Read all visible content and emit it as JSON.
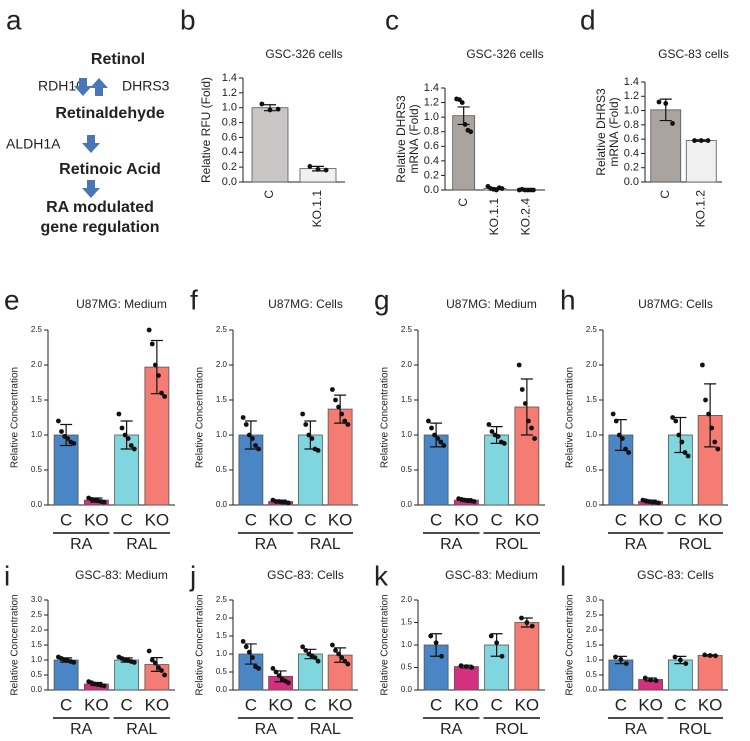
{
  "panel_a": {
    "letter": "a",
    "top": "Retinol",
    "left_enzyme": "RDH10",
    "right_enzyme": "DHRS3",
    "middle": "Retinaldehyde",
    "enzyme": "ALDH1A",
    "product": "Retinoic Acid",
    "outcome": [
      "RA modulated",
      "gene regulation"
    ]
  },
  "chart_data": [
    {
      "type": "bar",
      "panel": "b",
      "title": "GSC-326 cells",
      "ylabel": [
        "Relative RFU (Fold)"
      ],
      "categories": [
        "C",
        "KO.1.1"
      ],
      "values": [
        1.0,
        0.18
      ],
      "errors": [
        0.04,
        0.03
      ],
      "points": [
        [
          1.05,
          0.97,
          0.98
        ],
        [
          0.21,
          0.17,
          0.16
        ]
      ],
      "colors": [
        "#c9c5c5",
        "#f0f0f0"
      ],
      "ylim": [
        0,
        1.4
      ],
      "yticks": [
        {
          "value": 0,
          "label": "0.0"
        },
        0.2,
        0.4,
        0.6,
        0.8,
        {
          "value": 1,
          "label": "1.0"
        },
        1.2,
        1.4
      ]
    },
    {
      "type": "bar",
      "panel": "c",
      "title": "GSC-326 cells",
      "ylabel": [
        "Relative DHRS3",
        "mRNA (Fold)"
      ],
      "categories": [
        "C",
        "KO.1.1",
        "KO.2.4"
      ],
      "values": [
        1.02,
        0.02,
        0.0
      ],
      "errors": [
        0.12,
        0.01,
        0.0
      ],
      "points": [
        [
          1.25,
          1.24,
          1.2,
          0.9,
          0.82,
          0.8
        ],
        [
          0.05,
          0.02,
          0.01,
          0.0,
          0.03,
          0.02
        ],
        [
          0.0,
          0.01,
          0.0,
          0.0,
          0.0,
          0.0
        ]
      ],
      "colors": [
        "#aaa4a0",
        "#ffffff",
        "#ffffff"
      ],
      "ylim": [
        0,
        1.4
      ],
      "yticks": [
        {
          "value": 0,
          "label": "0.0"
        },
        0.2,
        0.4,
        0.6,
        0.8,
        {
          "value": 1,
          "label": "1.0"
        },
        1.2,
        1.4
      ]
    },
    {
      "type": "bar",
      "panel": "d",
      "title": "GSC-83 cells",
      "ylabel": [
        "Relative DHRS3",
        "mRNA (Fold)"
      ],
      "categories": [
        "C",
        "KO.1.2"
      ],
      "values": [
        1.01,
        0.58
      ],
      "errors": [
        0.15,
        0.01
      ],
      "points": [
        [
          1.12,
          1.1,
          0.82
        ],
        [
          0.58,
          0.58,
          0.58
        ]
      ],
      "colors": [
        "#aaa4a0",
        "#f0f0f0"
      ],
      "ylim": [
        0,
        1.4
      ],
      "yticks": [
        {
          "value": 0,
          "label": "0.0"
        },
        0.2,
        0.4,
        0.6,
        0.8,
        {
          "value": 1,
          "label": "1.0"
        },
        1.2,
        1.4
      ]
    },
    {
      "type": "bar",
      "panel": "e",
      "title": "U87MG: Medium",
      "ylabel": [
        "Relative Concentration"
      ],
      "categories": [
        "C",
        "KO",
        "C",
        "KO"
      ],
      "groups": [
        "RA",
        "RAL"
      ],
      "values": [
        1.0,
        0.07,
        1.0,
        1.97
      ],
      "errors": [
        0.15,
        0.03,
        0.2,
        0.38
      ],
      "points": [
        [
          1.2,
          1.05,
          0.98,
          0.95,
          0.9,
          0.88
        ],
        [
          0.1,
          0.08,
          0.07,
          0.06,
          0.05,
          0.04
        ],
        [
          1.3,
          1.1,
          1.0,
          0.95,
          0.85,
          0.8
        ],
        [
          2.5,
          2.3,
          2.0,
          1.85,
          1.6,
          1.55
        ]
      ],
      "colors": [
        "#4a86c6",
        "#d42f80",
        "#80d6df",
        "#f47c73"
      ],
      "ylim": [
        0,
        2.5
      ],
      "yticks": [
        {
          "value": 0,
          "label": "0.0"
        },
        0.5,
        {
          "value": 1,
          "label": "1.0"
        },
        1.5,
        {
          "value": 2,
          "label": "2.0"
        },
        2.5
      ]
    },
    {
      "type": "bar",
      "panel": "f",
      "title": "U87MG: Cells",
      "ylabel": [
        "Relative Concentration"
      ],
      "categories": [
        "C",
        "KO",
        "C",
        "KO"
      ],
      "groups": [
        "RA",
        "RAL"
      ],
      "values": [
        1.0,
        0.05,
        1.0,
        1.37
      ],
      "errors": [
        0.2,
        0.02,
        0.2,
        0.2
      ],
      "points": [
        [
          1.25,
          1.15,
          1.0,
          0.95,
          0.85,
          0.8
        ],
        [
          0.07,
          0.05,
          0.05,
          0.04,
          0.04,
          0.03
        ],
        [
          1.3,
          1.15,
          1.0,
          0.95,
          0.8,
          0.78
        ],
        [
          1.65,
          1.5,
          1.4,
          1.3,
          1.2,
          1.15
        ]
      ],
      "colors": [
        "#4a86c6",
        "#d42f80",
        "#80d6df",
        "#f47c73"
      ],
      "ylim": [
        0,
        2.5
      ],
      "yticks": [
        {
          "value": 0,
          "label": "0.0"
        },
        0.5,
        {
          "value": 1,
          "label": "1.0"
        },
        1.5,
        {
          "value": 2,
          "label": "2.0"
        },
        2.5
      ]
    },
    {
      "type": "bar",
      "panel": "g",
      "title": "U87MG: Medium",
      "ylabel": [
        "Relative Concentration"
      ],
      "categories": [
        "C",
        "KO",
        "C",
        "KO"
      ],
      "groups": [
        "RA",
        "ROL"
      ],
      "values": [
        1.0,
        0.07,
        1.0,
        1.4
      ],
      "errors": [
        0.17,
        0.02,
        0.12,
        0.4
      ],
      "points": [
        [
          1.2,
          1.1,
          1.0,
          0.95,
          0.9,
          0.85
        ],
        [
          0.09,
          0.08,
          0.07,
          0.06,
          0.06,
          0.05
        ],
        [
          1.15,
          1.05,
          1.0,
          0.98,
          0.9,
          0.88
        ],
        [
          2.0,
          1.65,
          1.45,
          1.2,
          1.1,
          0.95
        ]
      ],
      "colors": [
        "#4a86c6",
        "#d42f80",
        "#80d6df",
        "#f47c73"
      ],
      "ylim": [
        0,
        2.5
      ],
      "yticks": [
        {
          "value": 0,
          "label": "0.0"
        },
        0.5,
        {
          "value": 1,
          "label": "1.0"
        },
        1.5,
        {
          "value": 2,
          "label": "2.0"
        },
        2.5
      ]
    },
    {
      "type": "bar",
      "panel": "h",
      "title": "U87MG: Cells",
      "ylabel": [
        "Relative Concentration"
      ],
      "categories": [
        "C",
        "KO",
        "C",
        "KO"
      ],
      "groups": [
        "RA",
        "ROL"
      ],
      "values": [
        1.0,
        0.05,
        1.0,
        1.28
      ],
      "errors": [
        0.22,
        0.02,
        0.25,
        0.45
      ],
      "points": [
        [
          1.3,
          1.2,
          1.0,
          0.95,
          0.8,
          0.75
        ],
        [
          0.07,
          0.06,
          0.05,
          0.04,
          0.04,
          0.03
        ],
        [
          1.25,
          1.2,
          1.0,
          0.9,
          0.75,
          0.7
        ],
        [
          2.0,
          1.5,
          1.3,
          1.1,
          0.9,
          0.8
        ]
      ],
      "colors": [
        "#4a86c6",
        "#d42f80",
        "#80d6df",
        "#f47c73"
      ],
      "ylim": [
        0,
        2.5
      ],
      "yticks": [
        {
          "value": 0,
          "label": "0.0"
        },
        0.5,
        {
          "value": 1,
          "label": "1.0"
        },
        1.5,
        {
          "value": 2,
          "label": "2.0"
        },
        2.5
      ]
    },
    {
      "type": "bar",
      "panel": "i",
      "title": "GSC-83: Medium",
      "ylabel": [
        "Relative Concentration"
      ],
      "categories": [
        "C",
        "KO",
        "C",
        "KO"
      ],
      "groups": [
        "RA",
        "RAL"
      ],
      "values": [
        1.0,
        0.2,
        1.0,
        0.85
      ],
      "errors": [
        0.07,
        0.05,
        0.07,
        0.23
      ],
      "points": [
        [
          1.1,
          1.05,
          1.0,
          0.98,
          0.95,
          0.92
        ],
        [
          0.28,
          0.24,
          0.2,
          0.18,
          0.16,
          0.14
        ],
        [
          1.1,
          1.05,
          1.0,
          0.98,
          0.95,
          0.92
        ],
        [
          1.3,
          1.0,
          0.9,
          0.75,
          0.65,
          0.5
        ]
      ],
      "colors": [
        "#4a86c6",
        "#d42f80",
        "#80d6df",
        "#f47c73"
      ],
      "ylim": [
        0,
        3
      ],
      "yticks": [
        {
          "value": 0,
          "label": "0.0"
        },
        0.5,
        {
          "value": 1,
          "label": "1.0"
        },
        1.5,
        {
          "value": 2,
          "label": "2.0"
        },
        2.5,
        {
          "value": 3,
          "label": "3.0"
        }
      ]
    },
    {
      "type": "bar",
      "panel": "j",
      "title": "GSC-83: Cells",
      "ylabel": [
        "Relative Concentration"
      ],
      "categories": [
        "C",
        "KO",
        "C",
        "KO"
      ],
      "groups": [
        "RA",
        "RAL"
      ],
      "values": [
        1.0,
        0.38,
        1.0,
        0.97
      ],
      "errors": [
        0.28,
        0.15,
        0.13,
        0.2
      ],
      "points": [
        [
          1.35,
          1.2,
          1.05,
          0.9,
          0.65,
          0.6
        ],
        [
          0.6,
          0.5,
          0.4,
          0.3,
          0.25,
          0.2
        ],
        [
          1.2,
          1.1,
          1.0,
          0.95,
          0.9,
          0.8
        ],
        [
          1.25,
          1.1,
          1.0,
          0.9,
          0.8,
          0.72
        ]
      ],
      "colors": [
        "#4a86c6",
        "#d42f80",
        "#80d6df",
        "#f47c73"
      ],
      "ylim": [
        0,
        2.5
      ],
      "yticks": [
        {
          "value": 0,
          "label": "0.0"
        },
        0.5,
        {
          "value": 1,
          "label": "1.0"
        },
        1.5,
        {
          "value": 2,
          "label": "2.0"
        },
        2.5
      ]
    },
    {
      "type": "bar",
      "panel": "k",
      "title": "GSC-83: Medium",
      "ylabel": [
        "Relative Concentration"
      ],
      "categories": [
        "C",
        "KO",
        "C",
        "KO"
      ],
      "groups": [
        "RA",
        "ROL"
      ],
      "values": [
        1.0,
        0.52,
        1.0,
        1.5
      ],
      "errors": [
        0.25,
        0.03,
        0.25,
        0.1
      ],
      "points": [
        [
          1.2,
          1.05,
          0.75
        ],
        [
          0.54,
          0.52,
          0.5
        ],
        [
          1.2,
          1.05,
          0.75
        ],
        [
          1.6,
          1.5,
          1.42
        ]
      ],
      "colors": [
        "#4a86c6",
        "#d42f80",
        "#80d6df",
        "#f47c73"
      ],
      "ylim": [
        0,
        2
      ],
      "yticks": [
        {
          "value": 0,
          "label": "0.0"
        },
        0.5,
        {
          "value": 1,
          "label": "1.0"
        },
        1.5,
        {
          "value": 2,
          "label": "2.0"
        }
      ]
    },
    {
      "type": "bar",
      "panel": "l",
      "title": "GSC-83: Cells",
      "ylabel": [
        "Relative Concentration"
      ],
      "categories": [
        "C",
        "KO",
        "C",
        "KO"
      ],
      "groups": [
        "RA",
        "ROL"
      ],
      "values": [
        1.0,
        0.35,
        1.0,
        1.15
      ],
      "errors": [
        0.12,
        0.05,
        0.12,
        0.02
      ],
      "points": [
        [
          1.1,
          1.02,
          0.88
        ],
        [
          0.4,
          0.33,
          0.31
        ],
        [
          1.1,
          1.0,
          0.88
        ],
        [
          1.17,
          1.15,
          1.14
        ]
      ],
      "colors": [
        "#4a86c6",
        "#d42f80",
        "#80d6df",
        "#f47c73"
      ],
      "ylim": [
        0,
        3
      ],
      "yticks": [
        {
          "value": 0,
          "label": "0.0"
        },
        0.5,
        {
          "value": 1,
          "label": "1.0"
        },
        1.5,
        {
          "value": 2,
          "label": "2.0"
        },
        2.5,
        {
          "value": 3,
          "label": "3.0"
        }
      ]
    }
  ]
}
